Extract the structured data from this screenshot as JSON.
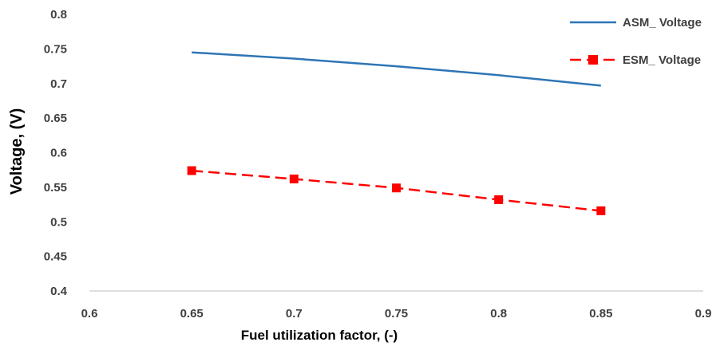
{
  "chart_data": {
    "type": "line",
    "title": "",
    "xlabel": "Fuel utilization factor, (-)",
    "ylabel": "Voltage, (V)",
    "xlim": [
      0.6,
      0.9
    ],
    "ylim": [
      0.4,
      0.8
    ],
    "x_ticks": [
      "0.6",
      "0.65",
      "0.7",
      "0.75",
      "0.8",
      "0.85",
      "0.9"
    ],
    "y_ticks": [
      "0.4",
      "0.45",
      "0.5",
      "0.55",
      "0.6",
      "0.65",
      "0.7",
      "0.75",
      "0.8"
    ],
    "grid": false,
    "legend_position": "top-right",
    "series": [
      {
        "name": "ASM_ Voltage",
        "color": "#2e75b6",
        "style": "solid",
        "marker": "none",
        "x": [
          0.65,
          0.7,
          0.75,
          0.8,
          0.85
        ],
        "y": [
          0.745,
          0.736,
          0.725,
          0.712,
          0.697
        ]
      },
      {
        "name": "ESM_ Voltage",
        "color": "#ff0000",
        "style": "dashed",
        "marker": "square",
        "x": [
          0.65,
          0.7,
          0.75,
          0.8,
          0.85
        ],
        "y": [
          0.574,
          0.562,
          0.549,
          0.532,
          0.516
        ]
      }
    ]
  }
}
